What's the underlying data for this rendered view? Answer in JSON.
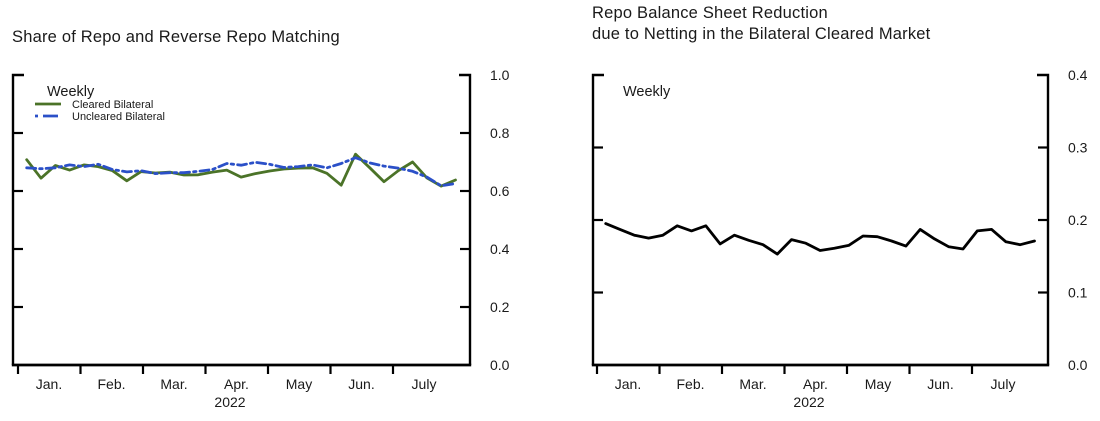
{
  "figure": {
    "background": "#ffffff",
    "text_color": "#1a1a1a",
    "axis_color": "#000000"
  },
  "chart_data": [
    {
      "type": "line",
      "title": "Share of Repo and Reverse Repo Matching",
      "frequency_label": "Weekly",
      "show_legend": true,
      "x_axis": {
        "tick_labels": [
          "Jan.",
          "Feb.",
          "Mar.",
          "Apr.",
          "May",
          "Jun.",
          "July"
        ],
        "tick_months": [
          1,
          2,
          3,
          4,
          5,
          6,
          7
        ],
        "year_label": "2022"
      },
      "y_axis": {
        "min": 0,
        "max": 1.0,
        "tick_values": [
          0,
          0.2,
          0.4,
          0.6,
          0.8,
          1.0
        ],
        "tick_labels": [
          "0.0",
          "0.2",
          "0.4",
          "0.6",
          "0.8",
          "1.0"
        ]
      },
      "x_start_month": 1.14,
      "x_end_month": 8.0,
      "series": [
        {
          "name": "Cleared Bilateral",
          "color": "#4b7328",
          "dash": "",
          "values": [
            0.708,
            0.644,
            0.688,
            0.672,
            0.69,
            0.684,
            0.67,
            0.635,
            0.667,
            0.662,
            0.665,
            0.655,
            0.656,
            0.665,
            0.672,
            0.648,
            0.66,
            0.669,
            0.676,
            0.679,
            0.68,
            0.661,
            0.62,
            0.727,
            0.68,
            0.632,
            0.67,
            0.7,
            0.645,
            0.617,
            0.638
          ]
        },
        {
          "name": "Uncleared Bilateral",
          "color": "#2b50c8",
          "dash": "9 4 2.5 4",
          "values": [
            0.68,
            0.677,
            0.68,
            0.69,
            0.684,
            0.692,
            0.674,
            0.666,
            0.67,
            0.66,
            0.663,
            0.663,
            0.668,
            0.674,
            0.695,
            0.689,
            0.699,
            0.692,
            0.681,
            0.684,
            0.69,
            0.68,
            0.695,
            0.715,
            0.697,
            0.686,
            0.679,
            0.668,
            0.648,
            0.618,
            0.626
          ]
        }
      ]
    },
    {
      "type": "line",
      "title": "Repo Balance Sheet Reduction\ndue to Netting in the Bilateral Cleared Market",
      "frequency_label": "Weekly",
      "show_legend": false,
      "x_axis": {
        "tick_labels": [
          "Jan.",
          "Feb.",
          "Mar.",
          "Apr.",
          "May",
          "Jun.",
          "July"
        ],
        "tick_months": [
          1,
          2,
          3,
          4,
          5,
          6,
          7
        ],
        "year_label": "2022"
      },
      "y_axis": {
        "min": 0,
        "max": 0.4,
        "tick_values": [
          0,
          0.1,
          0.2,
          0.3,
          0.4
        ],
        "tick_labels": [
          "0.0",
          "0.1",
          "0.2",
          "0.3",
          "0.4"
        ]
      },
      "x_start_month": 1.14,
      "x_end_month": 8.0,
      "series": [
        {
          "name": "Weekly",
          "color": "#000000",
          "dash": "",
          "values": [
            0.195,
            0.187,
            0.179,
            0.175,
            0.179,
            0.192,
            0.185,
            0.192,
            0.167,
            0.179,
            0.172,
            0.166,
            0.153,
            0.173,
            0.168,
            0.158,
            0.161,
            0.165,
            0.178,
            0.177,
            0.171,
            0.164,
            0.187,
            0.174,
            0.163,
            0.16,
            0.185,
            0.187,
            0.17,
            0.166,
            0.171
          ]
        }
      ]
    }
  ]
}
